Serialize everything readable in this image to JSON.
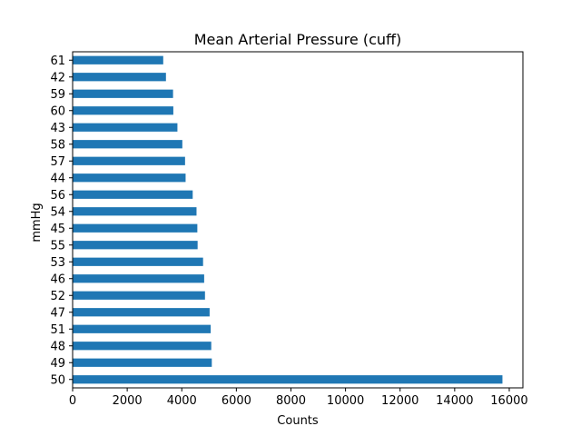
{
  "chart_data": {
    "type": "bar",
    "orientation": "horizontal",
    "title": "Mean Arterial Pressure (cuff)",
    "xlabel": "Counts",
    "ylabel": "mmHg",
    "categories": [
      "50",
      "49",
      "48",
      "51",
      "47",
      "52",
      "46",
      "53",
      "55",
      "45",
      "54",
      "56",
      "44",
      "57",
      "58",
      "43",
      "60",
      "59",
      "42",
      "61"
    ],
    "values": [
      15750,
      5100,
      5080,
      5060,
      5020,
      4850,
      4820,
      4780,
      4580,
      4570,
      4540,
      4400,
      4140,
      4120,
      4020,
      3840,
      3690,
      3680,
      3420,
      3320
    ],
    "xlim": [
      0,
      16500
    ],
    "xticks": [
      0,
      2000,
      4000,
      6000,
      8000,
      10000,
      12000,
      14000,
      16000
    ],
    "bar_color": "#1f77b4",
    "grid": false
  }
}
